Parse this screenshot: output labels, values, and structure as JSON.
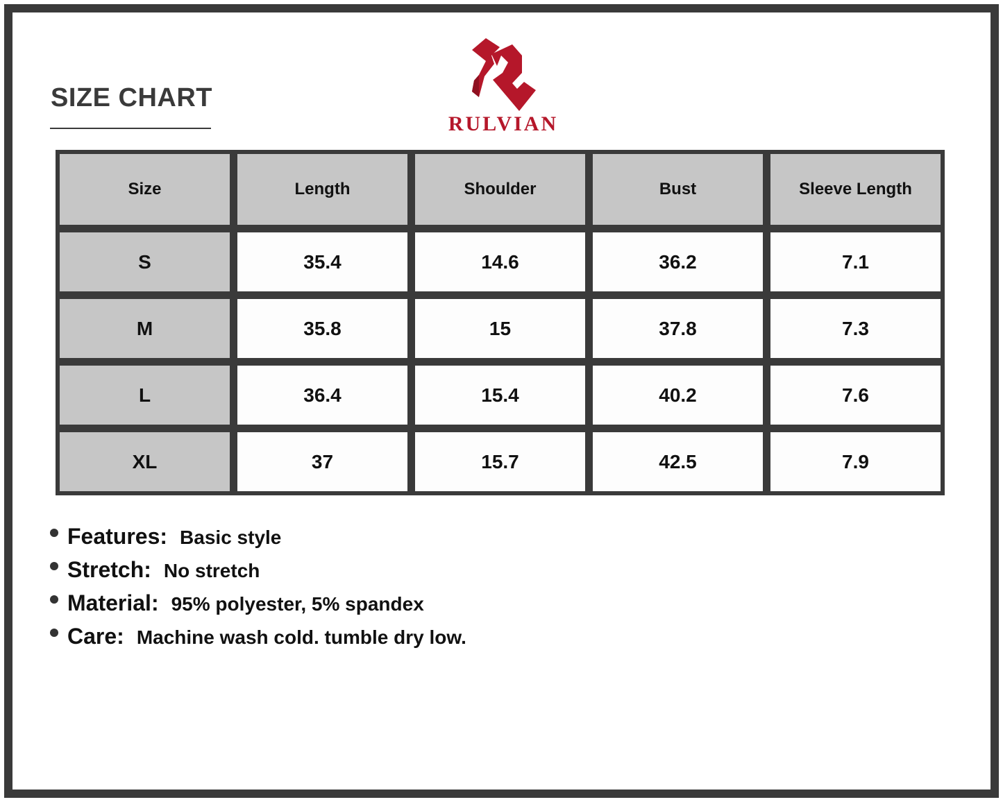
{
  "title": "SIZE CHART",
  "brand": {
    "name": "RULVIAN",
    "color": "#b5172a"
  },
  "table": {
    "headers": [
      "Size",
      "Length",
      "Shoulder",
      "Bust",
      "Sleeve Length"
    ],
    "rows": [
      [
        "S",
        "35.4",
        "14.6",
        "36.2",
        "7.1"
      ],
      [
        "M",
        "35.8",
        "15",
        "37.8",
        "7.3"
      ],
      [
        "L",
        "36.4",
        "15.4",
        "40.2",
        "7.6"
      ],
      [
        "XL",
        "37",
        "15.7",
        "42.5",
        "7.9"
      ]
    ]
  },
  "notes": [
    {
      "label": "Features:",
      "value": "Basic style"
    },
    {
      "label": "Stretch:",
      "value": "No stretch"
    },
    {
      "label": "Material:",
      "value": "95% polyester, 5% spandex"
    },
    {
      "label": "Care:",
      "value": "Machine wash cold. tumble dry low."
    }
  ]
}
